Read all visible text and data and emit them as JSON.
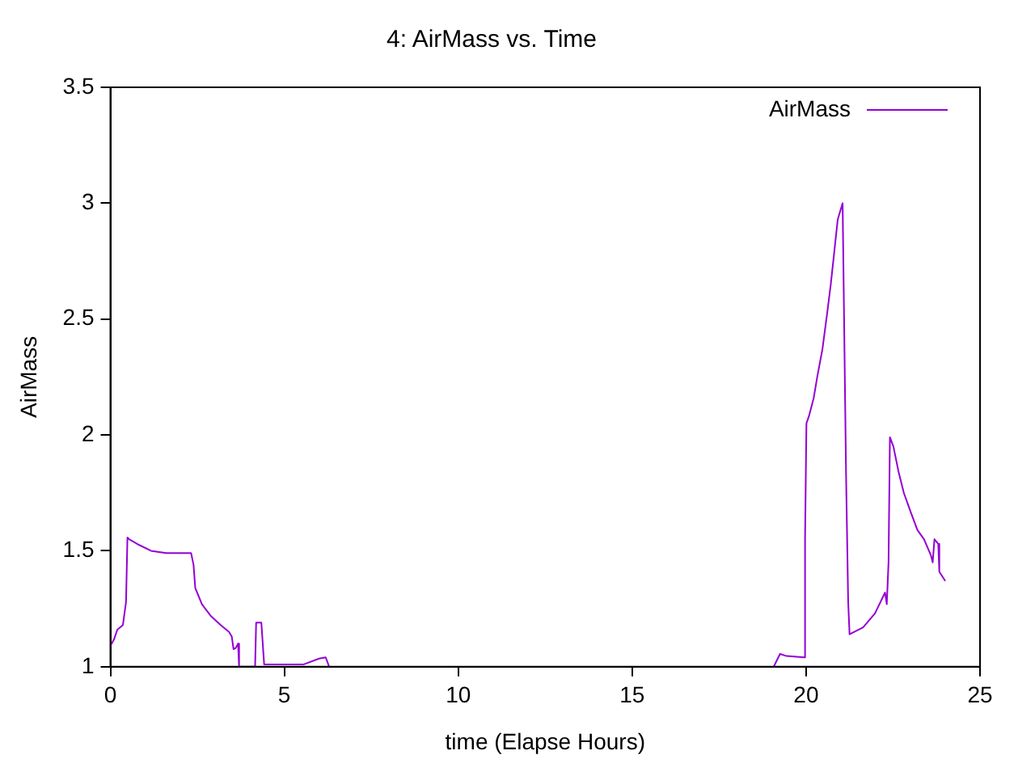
{
  "chart_data": {
    "type": "line",
    "title": "4: AirMass vs. Time",
    "xlabel": "time (Elapse Hours)",
    "ylabel": "AirMass",
    "xlim": [
      0,
      25
    ],
    "xticks": [
      0,
      5,
      10,
      15,
      20,
      25
    ],
    "ylim": [
      1,
      3.5
    ],
    "yticks": [
      1,
      1.5,
      2,
      2.5,
      3,
      3.5
    ],
    "grid": false,
    "legend": "top right",
    "marker": "none",
    "line_style": "solid",
    "x": [
      0,
      0.11,
      0.2,
      0.36,
      0.45,
      0.49,
      0.54,
      0.83,
      1.17,
      1.61,
      2.32,
      2.39,
      2.44,
      2.63,
      2.88,
      3.17,
      3.41,
      3.49,
      3.54,
      3.6,
      3.67,
      3.7,
      4.16,
      4.19,
      4.34,
      4.42,
      4.63,
      4.97,
      5.56,
      6.0,
      6.19,
      6.29,
      12,
      19.07,
      19.25,
      19.44,
      19.95,
      19.97,
      20.01,
      20.08,
      20.22,
      20.32,
      20.47,
      20.61,
      20.71,
      20.81,
      20.91,
      21.05,
      21.15,
      21.21,
      21.25,
      21.64,
      21.98,
      22.27,
      22.32,
      22.37,
      22.41,
      22.51,
      22.66,
      22.81,
      23.0,
      23.2,
      23.39,
      23.59,
      23.64,
      23.69,
      23.8,
      23.83,
      24.0
    ],
    "series": [
      {
        "name": "AirMass",
        "color": "#9400d3",
        "values": [
          1.09,
          1.12,
          1.16,
          1.18,
          1.28,
          1.557,
          1.55,
          1.525,
          1.5,
          1.49,
          1.49,
          1.44,
          1.34,
          1.27,
          1.22,
          1.18,
          1.15,
          1.13,
          1.076,
          1.08,
          1.1,
          1.0,
          1.0,
          1.19,
          1.19,
          1.01,
          1.01,
          1.01,
          1.01,
          1.035,
          1.04,
          1.0,
          null,
          1.0,
          1.055,
          1.046,
          1.04,
          1.55,
          2.05,
          2.08,
          2.16,
          2.25,
          2.37,
          2.53,
          2.65,
          2.79,
          2.93,
          3.0,
          1.82,
          1.28,
          1.14,
          1.17,
          1.23,
          1.32,
          1.27,
          1.45,
          1.99,
          1.95,
          1.84,
          1.75,
          1.67,
          1.59,
          1.55,
          1.48,
          1.45,
          1.55,
          1.53,
          1.41,
          1.37
        ]
      }
    ]
  }
}
